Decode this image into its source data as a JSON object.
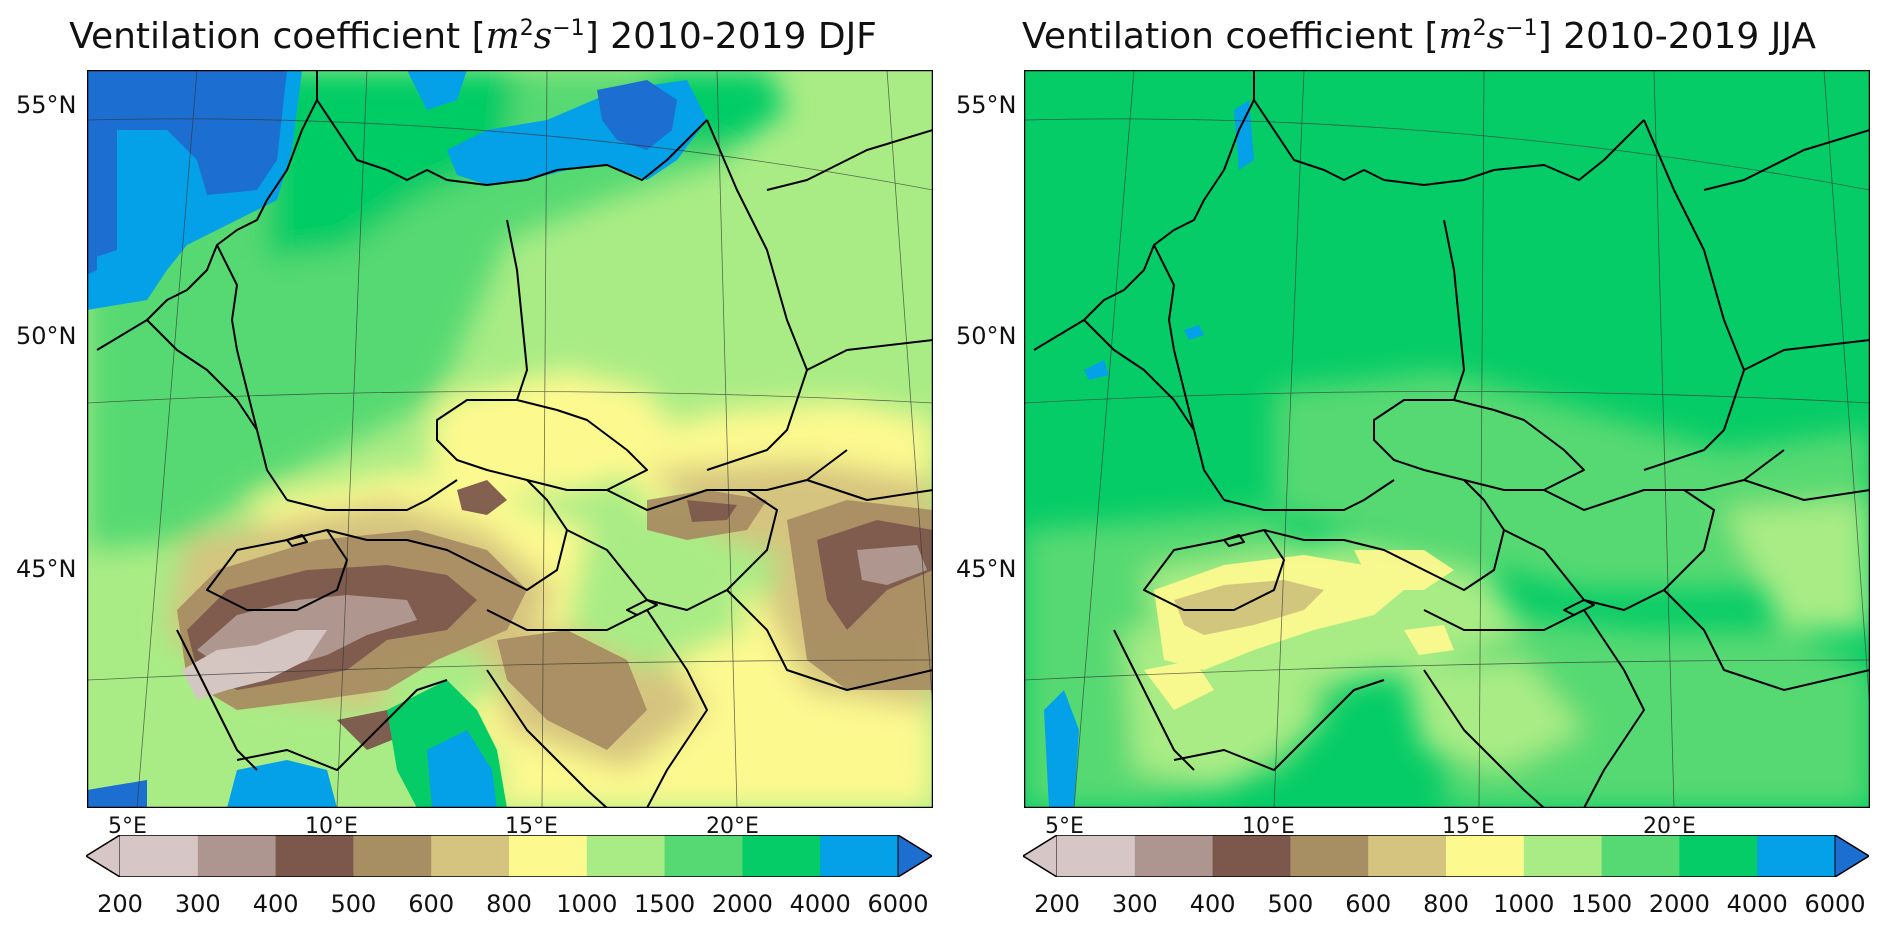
{
  "colors": {
    "lt300": "#d6c6c6",
    "300_400": "#ad9590",
    "400_500": "#7c574c",
    "500_600": "#a88e63",
    "600_800": "#d5c47f",
    "800_1000": "#fcf98f",
    "1000_1500": "#a9ec85",
    "1500_2000": "#56d972",
    "2000_4000": "#05cc66",
    "4000_6000": "#04a0e8",
    "gt6000": "#1c6ed0",
    "border": "#000000"
  },
  "colorbar": {
    "ticks": [
      "200",
      "300",
      "400",
      "500",
      "600",
      "800",
      "1000",
      "1500",
      "2000",
      "4000",
      "6000"
    ],
    "bin_colors": [
      "300_400",
      "400_500",
      "500_600",
      "600_800",
      "800_1000",
      "1000_1500",
      "1500_2000",
      "2000_4000",
      "4000_6000"
    ],
    "first_bin_color": "lt300",
    "under_color": "lt300",
    "over_color": "gt6000"
  },
  "graticule": {
    "lat_labels": [
      "55°N",
      "50°N",
      "45°N"
    ],
    "lon_labels": [
      "5°E",
      "10°E",
      "15°E",
      "20°E"
    ]
  },
  "panels": [
    {
      "id": "djf",
      "title_prefix": "Ventilation coefficient [",
      "title_m": "m",
      "title_m_exp": "2",
      "title_s": "s",
      "title_s_exp": "−1",
      "title_suffix": "] 2010-2019 DJF"
    },
    {
      "id": "jja",
      "title_prefix": "Ventilation coefficient [",
      "title_m": "m",
      "title_m_exp": "2",
      "title_s": "s",
      "title_s_exp": "−1",
      "title_suffix": "] 2010-2019 JJA"
    }
  ]
}
